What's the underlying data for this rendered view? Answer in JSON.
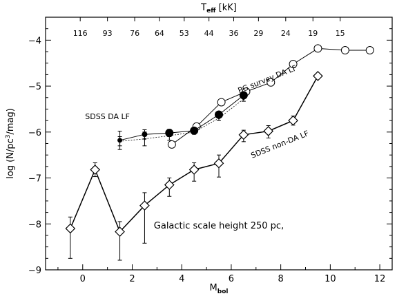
{
  "chart_data": {
    "type": "line",
    "title": "",
    "xlabel_main": "M",
    "xlabel_sub": "bol",
    "ylabel_prefix": "log (N/pc",
    "ylabel_sup": "3",
    "ylabel_suffix": "/mag)",
    "top_axis_label_main": "T",
    "top_axis_label_sub": "eff",
    "top_axis_label_unit": "[kK]",
    "xlim": [
      -1.5,
      12.5
    ],
    "ylim": [
      -9,
      -3.5
    ],
    "x_ticks": [
      0,
      2,
      4,
      6,
      8,
      10,
      12
    ],
    "y_ticks": [
      -9,
      -8,
      -7,
      -6,
      -5,
      -4
    ],
    "top_ticks": [
      {
        "x": -0.1,
        "label": "116"
      },
      {
        "x": 1.0,
        "label": "93"
      },
      {
        "x": 2.1,
        "label": "76"
      },
      {
        "x": 3.1,
        "label": "64"
      },
      {
        "x": 4.1,
        "label": "53"
      },
      {
        "x": 5.1,
        "label": "44"
      },
      {
        "x": 6.1,
        "label": "36"
      },
      {
        "x": 7.1,
        "label": "29"
      },
      {
        "x": 8.2,
        "label": "24"
      },
      {
        "x": 9.3,
        "label": "19"
      },
      {
        "x": 10.4,
        "label": "15"
      }
    ],
    "series": [
      {
        "name": "PG survey DA LF",
        "marker": "open-circle",
        "x": [
          3.6,
          4.6,
          5.6,
          6.6,
          7.6,
          8.5,
          9.5,
          10.6,
          11.6
        ],
        "y": [
          -6.27,
          -5.88,
          -5.35,
          -5.12,
          -4.92,
          -4.52,
          -4.18,
          -4.22,
          -4.22
        ]
      },
      {
        "name": "SDSS DA LF",
        "marker": "filled-circle",
        "x": [
          1.5,
          2.5,
          3.5,
          4.5,
          5.5,
          6.5
        ],
        "y": [
          -6.18,
          -6.05,
          -6.02,
          -5.97,
          -5.62,
          -5.2
        ],
        "yerr": [
          0.2,
          0.1,
          0.08,
          0.06,
          0.05,
          0.05
        ],
        "marker_size": [
          3.5,
          4,
          6,
          6,
          6,
          6
        ]
      },
      {
        "name": "",
        "marker": "small-dot-dashed",
        "x": [
          1.5,
          2.5,
          3.5,
          4.5,
          5.5,
          6.5
        ],
        "y": [
          -6.2,
          -6.15,
          -6.08,
          -6.0,
          -5.7,
          -5.28
        ],
        "yerr": [
          0.1,
          0.15,
          0.1,
          0.05,
          0.05,
          0.05
        ]
      },
      {
        "name": "SDSS non-DA LF",
        "marker": "open-diamond",
        "x": [
          -0.5,
          0.5,
          1.5,
          2.5,
          3.5,
          4.5,
          5.5,
          6.5,
          7.5,
          8.5,
          9.5
        ],
        "y": [
          -8.1,
          -6.82,
          -8.17,
          -7.6,
          -7.15,
          -6.82,
          -6.68,
          -6.06,
          -5.98,
          -5.75,
          -4.78
        ],
        "yerr_up": [
          0.25,
          0.15,
          0.22,
          0.28,
          0.15,
          0.15,
          0.18,
          0.1,
          0.12,
          0.1,
          0.05
        ],
        "yerr_down": [
          0.65,
          0.15,
          0.62,
          0.82,
          0.25,
          0.25,
          0.3,
          0.15,
          0.15,
          0.1,
          0.05
        ]
      }
    ],
    "annotations": [
      {
        "text": "PG survey DA LF",
        "at": [
          7.5,
          -4.9
        ],
        "rotate": -22
      },
      {
        "text": "SDSS DA LF",
        "at": [
          1.0,
          -5.72
        ],
        "rotate": 0
      },
      {
        "text": "SDSS non-DA LF",
        "at": [
          8.0,
          -6.32
        ],
        "rotate": -22
      },
      {
        "text": "Galactic scale height  250 pc,",
        "at": [
          5.5,
          -8.1
        ],
        "rotate": 0
      }
    ],
    "grid": false
  }
}
